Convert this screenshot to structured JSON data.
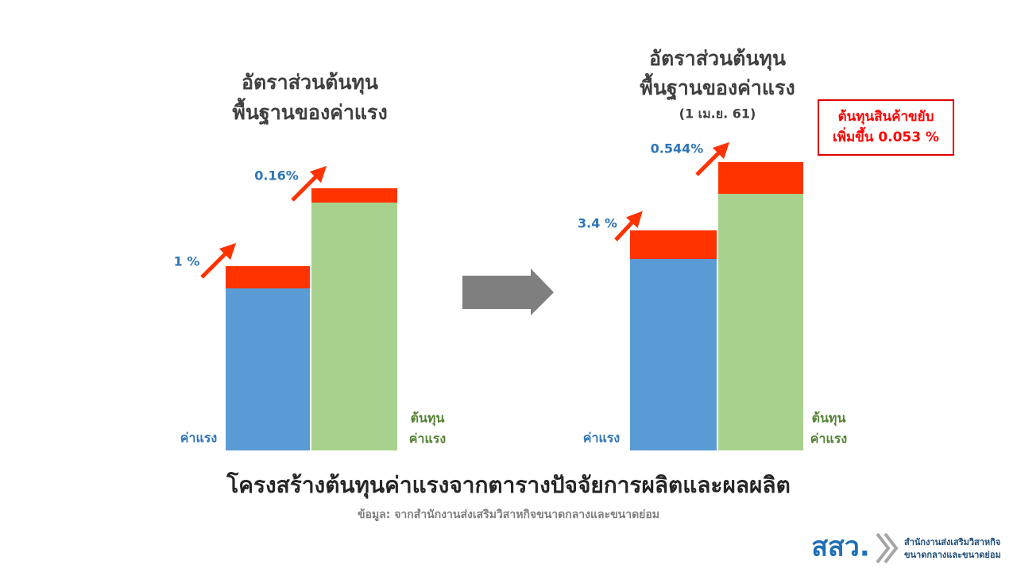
{
  "left_panel": {
    "title": [
      "อัตราส่วนต้นทุน",
      "พื้นฐานของค่าแรง"
    ],
    "wage_change": "1 %",
    "cost_change": "0.16%",
    "wage_label": "ค่าแรง",
    "cost_label": [
      "ต้นทุน",
      "ค่าแรง"
    ]
  },
  "right_panel": {
    "title": [
      "อัตราส่วนต้นทุน",
      "พื้นฐานของค่าแรง"
    ],
    "date": "(1 เม.ย. 61)",
    "wage_change": "3.4 %",
    "cost_change": "0.544%",
    "wage_label": "ค่าแรง",
    "cost_label": [
      "ต้นทุน",
      "ค่าแรง"
    ],
    "note": [
      "ต้นทุนสินค้าขยับ",
      "เพิ่มขึ้น 0.053 %"
    ]
  },
  "footer": {
    "title": "โครงสร้างต้นทุนค่าแรงจากตารางปัจจัยการผลิตและผลผลิต",
    "source": "ข้อมูล: จากสำนักงานส่งเสริมวิสาหกิจขนาดกลางและขนาดย่อม"
  },
  "logo": {
    "mark": "สสว.",
    "name": [
      "สำนักงานส่งเสริมวิสาหกิจ",
      "ขนาดกลางและขนาดย่อม"
    ]
  }
}
